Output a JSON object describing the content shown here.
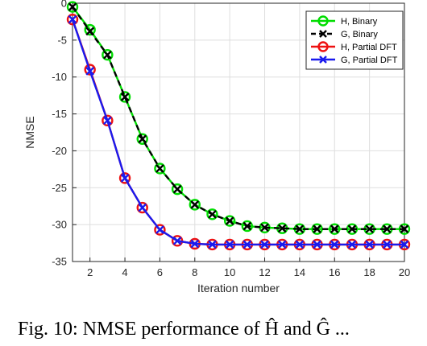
{
  "chart_data": {
    "type": "line",
    "xlabel": "Iteration number",
    "ylabel": "NMSE",
    "xlim": [
      1,
      20
    ],
    "ylim": [
      -35,
      0
    ],
    "xticks": [
      2,
      4,
      6,
      8,
      10,
      12,
      14,
      16,
      18,
      20
    ],
    "yticks": [
      0,
      -5,
      -10,
      -15,
      -20,
      -25,
      -30,
      -35
    ],
    "grid": true,
    "legend_position": "top-right",
    "x": [
      1,
      2,
      3,
      4,
      5,
      6,
      7,
      8,
      9,
      10,
      11,
      12,
      13,
      14,
      15,
      16,
      17,
      18,
      19,
      20
    ],
    "series": [
      {
        "name": "H, Binary",
        "color": "#00dd00",
        "line": "solid",
        "marker": "circle",
        "values": [
          -0.5,
          -3.6,
          -7.0,
          -12.7,
          -18.4,
          -22.4,
          -25.2,
          -27.3,
          -28.6,
          -29.5,
          -30.2,
          -30.4,
          -30.5,
          -30.6,
          -30.6,
          -30.6,
          -30.6,
          -30.6,
          -30.6,
          -30.6
        ]
      },
      {
        "name": "G, Binary",
        "color": "#000000",
        "line": "dashed",
        "marker": "x",
        "values": [
          -0.5,
          -3.8,
          -7.0,
          -12.7,
          -18.4,
          -22.4,
          -25.2,
          -27.3,
          -28.6,
          -29.5,
          -30.2,
          -30.4,
          -30.5,
          -30.6,
          -30.6,
          -30.6,
          -30.6,
          -30.6,
          -30.6,
          -30.6
        ]
      },
      {
        "name": "H, Partial DFT",
        "color": "#ee1111",
        "line": "solid",
        "marker": "circle",
        "values": [
          -2.2,
          -9.0,
          -15.9,
          -23.7,
          -27.7,
          -30.7,
          -32.2,
          -32.6,
          -32.7,
          -32.7,
          -32.7,
          -32.7,
          -32.7,
          -32.7,
          -32.7,
          -32.7,
          -32.7,
          -32.7,
          -32.7,
          -32.7
        ]
      },
      {
        "name": "G, Partial DFT",
        "color": "#1a1aee",
        "line": "solid",
        "marker": "x",
        "values": [
          -2.2,
          -9.2,
          -15.9,
          -23.7,
          -27.7,
          -30.7,
          -32.2,
          -32.6,
          -32.7,
          -32.7,
          -32.7,
          -32.7,
          -32.7,
          -32.7,
          -32.7,
          -32.7,
          -32.7,
          -32.7,
          -32.7,
          -32.7
        ]
      }
    ]
  },
  "caption": "Fig. 10: NMSE performance of Ĥ and Ĝ ..."
}
